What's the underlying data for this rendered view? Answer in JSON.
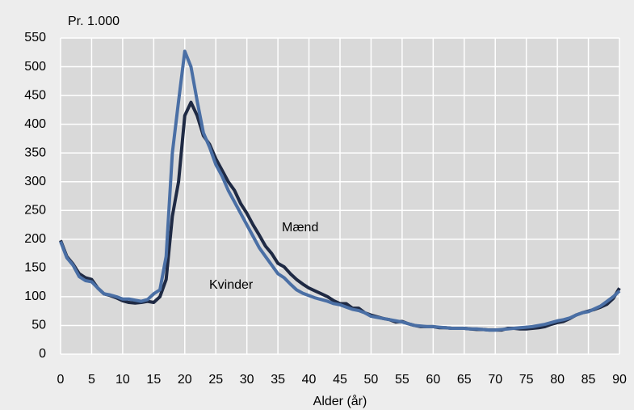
{
  "chart_data": {
    "type": "line",
    "y_axis_title": "Pr. 1.000",
    "x_axis_title": "Alder (år)",
    "x": [
      0,
      1,
      2,
      3,
      4,
      5,
      6,
      7,
      8,
      9,
      10,
      11,
      12,
      13,
      14,
      15,
      16,
      17,
      18,
      19,
      20,
      21,
      22,
      23,
      24,
      25,
      26,
      27,
      28,
      29,
      30,
      31,
      32,
      33,
      34,
      35,
      36,
      37,
      38,
      39,
      40,
      41,
      42,
      43,
      44,
      45,
      46,
      47,
      48,
      49,
      50,
      51,
      52,
      53,
      54,
      55,
      56,
      57,
      58,
      59,
      60,
      61,
      62,
      63,
      64,
      65,
      66,
      67,
      68,
      69,
      70,
      71,
      72,
      73,
      74,
      75,
      76,
      77,
      78,
      79,
      80,
      81,
      82,
      83,
      84,
      85,
      86,
      87,
      88,
      89,
      90
    ],
    "series": [
      {
        "name": "Mænd",
        "color": "#1f2a44",
        "values": [
          198,
          170,
          157,
          140,
          133,
          130,
          115,
          105,
          102,
          98,
          93,
          90,
          89,
          90,
          92,
          90,
          100,
          130,
          240,
          300,
          415,
          438,
          415,
          380,
          365,
          340,
          320,
          300,
          285,
          262,
          245,
          225,
          207,
          188,
          175,
          158,
          152,
          140,
          130,
          122,
          115,
          110,
          105,
          100,
          93,
          88,
          88,
          80,
          80,
          72,
          68,
          65,
          62,
          60,
          56,
          57,
          53,
          50,
          48,
          48,
          48,
          46,
          46,
          45,
          45,
          45,
          44,
          43,
          43,
          42,
          42,
          42,
          45,
          45,
          44,
          44,
          45,
          46,
          48,
          52,
          55,
          57,
          62,
          68,
          72,
          75,
          78,
          82,
          87,
          97,
          115
        ]
      },
      {
        "name": "Kvinder",
        "color": "#4a6fa5",
        "values": [
          196,
          168,
          155,
          135,
          128,
          126,
          115,
          105,
          103,
          100,
          96,
          96,
          94,
          92,
          95,
          105,
          112,
          170,
          350,
          440,
          527,
          500,
          440,
          385,
          360,
          330,
          310,
          285,
          265,
          245,
          225,
          205,
          185,
          170,
          155,
          140,
          133,
          122,
          112,
          106,
          102,
          98,
          95,
          92,
          88,
          86,
          82,
          78,
          76,
          72,
          66,
          64,
          62,
          60,
          58,
          56,
          53,
          50,
          49,
          48,
          48,
          47,
          46,
          45,
          45,
          45,
          44,
          44,
          43,
          42,
          42,
          43,
          44,
          45,
          46,
          47,
          48,
          50,
          52,
          55,
          58,
          60,
          63,
          68,
          72,
          74,
          79,
          84,
          92,
          100,
          110
        ]
      }
    ],
    "xlim": [
      0,
      90
    ],
    "xticks": [
      0,
      5,
      10,
      15,
      20,
      25,
      30,
      35,
      40,
      45,
      50,
      55,
      60,
      65,
      70,
      75,
      80,
      85,
      90
    ],
    "ylim": [
      0,
      550
    ],
    "yticks": [
      0,
      50,
      100,
      150,
      200,
      250,
      300,
      350,
      400,
      450,
      500,
      550
    ],
    "grid": true
  }
}
